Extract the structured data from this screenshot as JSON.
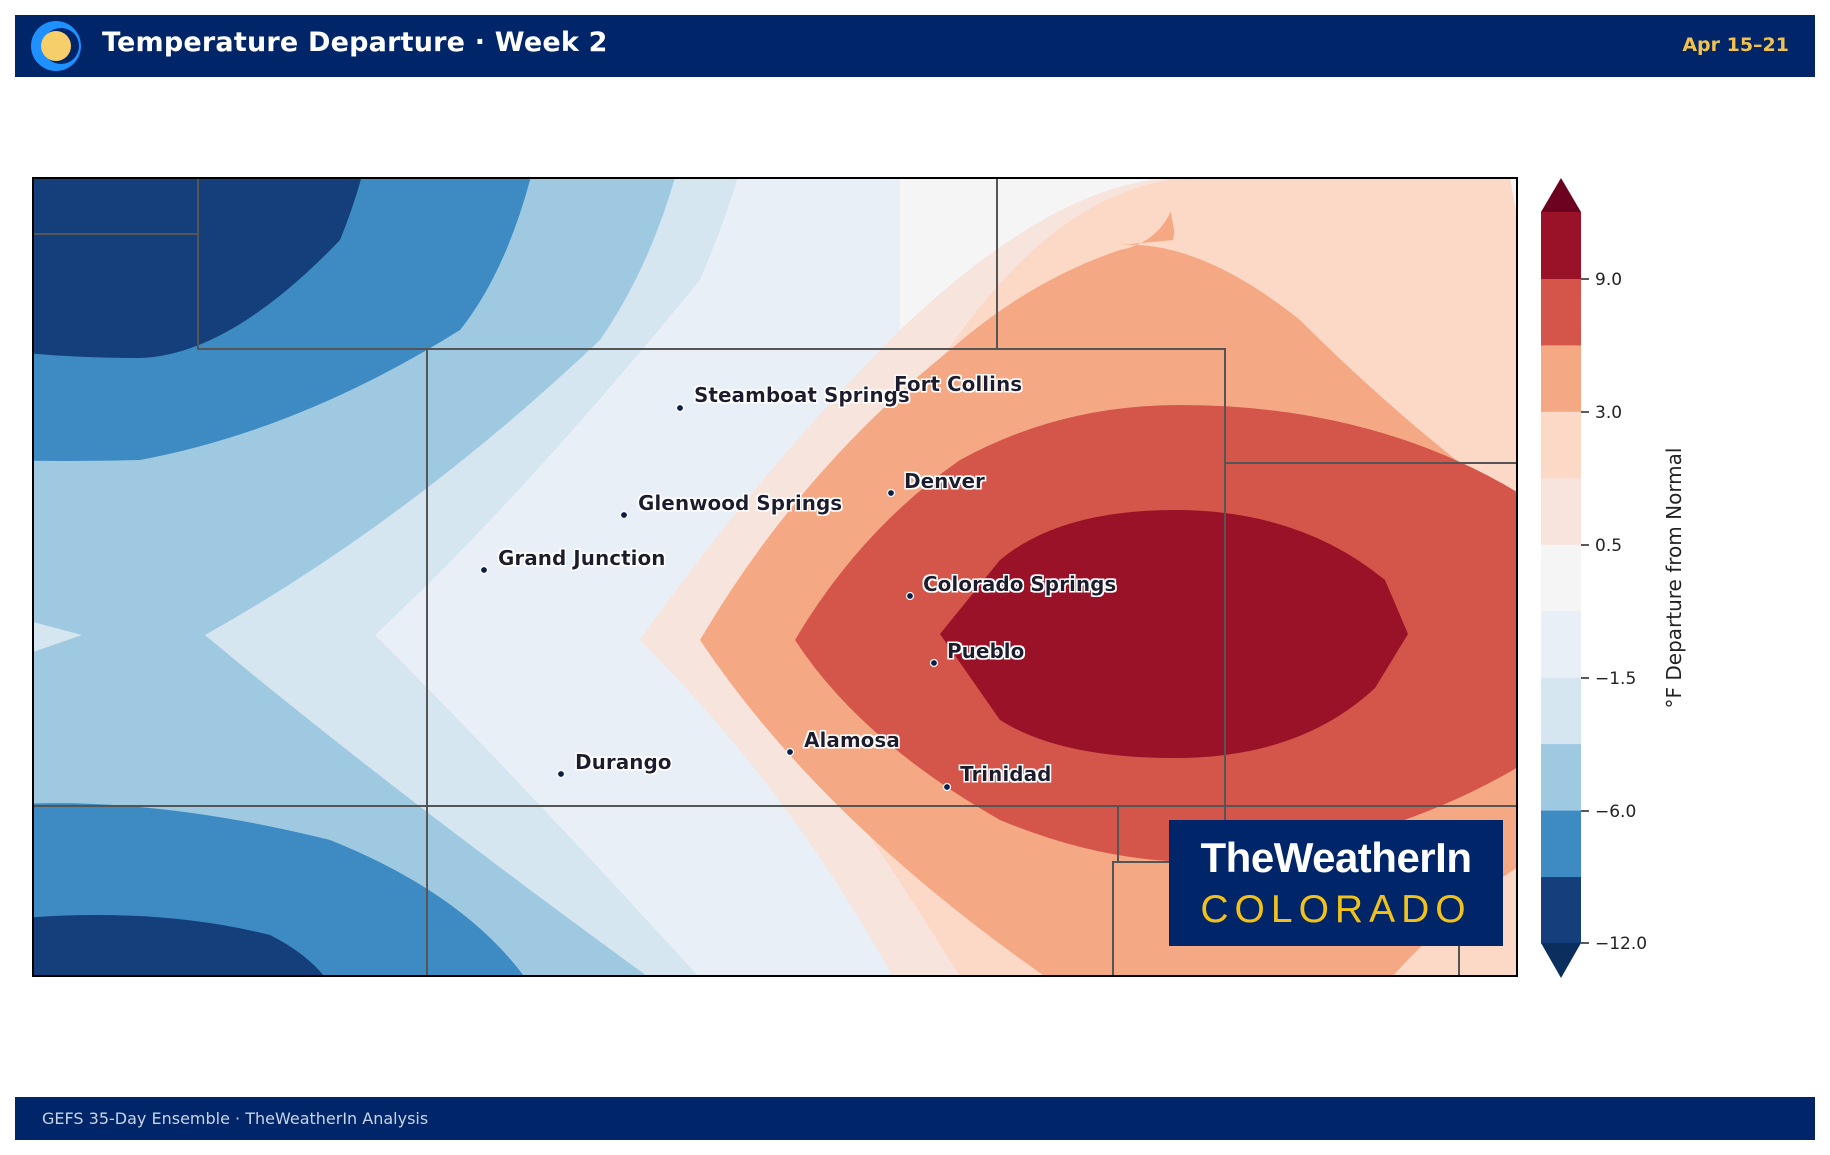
{
  "header": {
    "title": "Temperature Departure · Week 2",
    "date_range": "Apr 15–21"
  },
  "map": {
    "region": "Colorado",
    "cities": [
      {
        "name": "Steamboat Springs"
      },
      {
        "name": "Fort Collins"
      },
      {
        "name": "Denver"
      },
      {
        "name": "Glenwood Springs"
      },
      {
        "name": "Grand Junction"
      },
      {
        "name": "Colorado Springs"
      },
      {
        "name": "Pueblo"
      },
      {
        "name": "Alamosa"
      },
      {
        "name": "Durango"
      },
      {
        "name": "Trinidad"
      }
    ]
  },
  "colorbar": {
    "label": "°F Departure from Normal",
    "ticks": [
      "9.0",
      "3.0",
      "0.5",
      "−1.5",
      "−6.0",
      "−12.0"
    ],
    "colors": [
      "#143f7a",
      "#3d8bc2",
      "#9ec9e1",
      "#d6e6f1",
      "#e8eff6",
      "#f5f5f5",
      "#f7e4dc",
      "#fcd9c6",
      "#f4a984",
      "#d4554a",
      "#9a1227"
    ],
    "extend_low_color": "#0a2f5f",
    "extend_high_color": "#6b0220"
  },
  "brand": {
    "line1": "TheWeatherIn",
    "line2": "COLORADO",
    "logo_colors": [
      "#1e90ff",
      "#f7cf6a"
    ]
  },
  "footer": {
    "text": "GEFS 35-Day Ensemble  ·  TheWeatherIn Analysis"
  }
}
